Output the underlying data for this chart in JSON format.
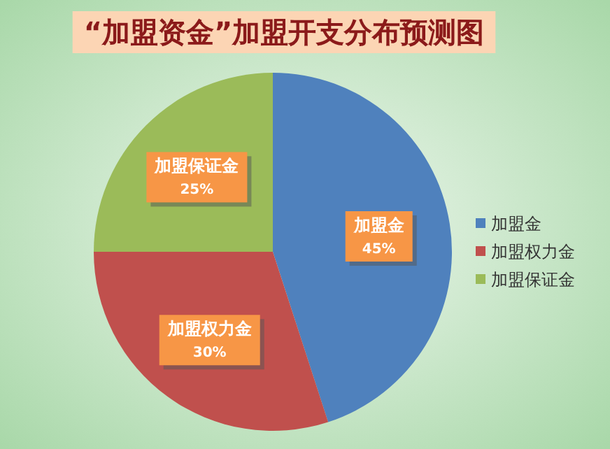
{
  "chart_data": {
    "type": "pie",
    "title": "“加盟资金”加盟开支分布预测图",
    "categories": [
      "加盟金",
      "加盟权力金",
      "加盟保证金"
    ],
    "values": [
      45,
      30,
      25
    ],
    "colors": [
      "#4f81bd",
      "#c0504d",
      "#9bbb59"
    ],
    "value_labels": [
      "45%",
      "30%",
      "25%"
    ],
    "legend": "right"
  }
}
